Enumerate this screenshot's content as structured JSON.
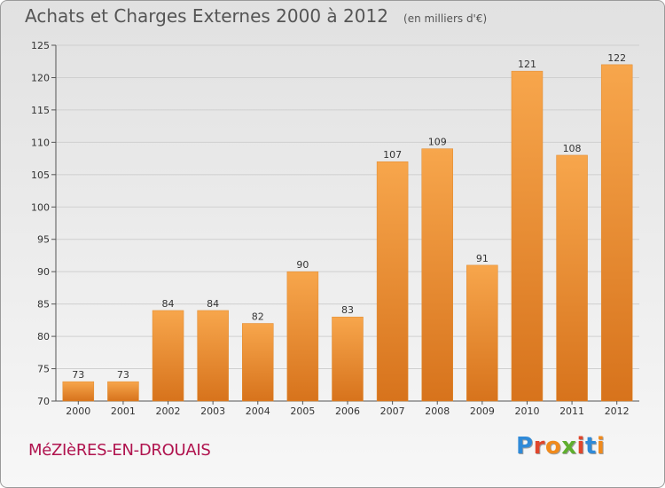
{
  "header": {
    "title": "Achats et Charges Externes 2000 à 2012",
    "unit": "(en milliers d'€)"
  },
  "footer": {
    "town": "MéZIèRES-EN-DROUAIS",
    "logo_text": "Proxiti"
  },
  "colors": {
    "bar_light": "#f7a64c",
    "bar_dark": "#d7731c",
    "grid": "#cfcfcf",
    "axis_text": "#333333",
    "town": "#b0134e",
    "logo_letters": [
      "#2f8ad8",
      "#e0462c",
      "#f08a1c",
      "#5fae2e",
      "#e0462c",
      "#2f8ad8",
      "#f08a1c"
    ]
  },
  "chart_data": {
    "type": "bar",
    "title": "Achats et Charges Externes 2000 à 2012",
    "ylabel": "",
    "xlabel": "",
    "categories": [
      "2000",
      "2001",
      "2002",
      "2003",
      "2004",
      "2005",
      "2006",
      "2007",
      "2008",
      "2009",
      "2010",
      "2011",
      "2012"
    ],
    "values": [
      73,
      73,
      84,
      84,
      82,
      90,
      83,
      107,
      109,
      91,
      121,
      108,
      122
    ],
    "ylim": [
      70,
      125
    ],
    "yticks": [
      70,
      75,
      80,
      85,
      90,
      95,
      100,
      105,
      110,
      115,
      120,
      125
    ],
    "grid": true,
    "data_labels": true
  }
}
